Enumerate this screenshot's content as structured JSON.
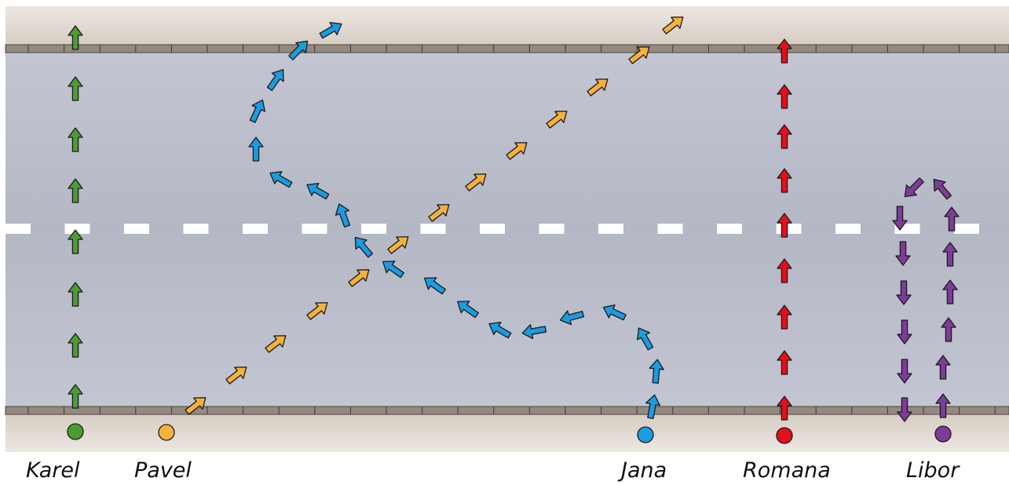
{
  "colors": {
    "road": "#b9bcca",
    "sidewalk": "#ddd5cc",
    "curb": "#958a80",
    "lane_marking": "#ffffff",
    "outline": "#1a1a1a"
  },
  "walkers": [
    {
      "key": "karel",
      "name": "Karel",
      "color": "#4a9e2f"
    },
    {
      "key": "pavel",
      "name": "Pavel",
      "color": "#f6b13c"
    },
    {
      "key": "jana",
      "name": "Jana",
      "color": "#1c9be0"
    },
    {
      "key": "romana",
      "name": "Romana",
      "color": "#e3101c"
    },
    {
      "key": "libor",
      "name": "Libor",
      "color": "#7d3c98"
    }
  ]
}
